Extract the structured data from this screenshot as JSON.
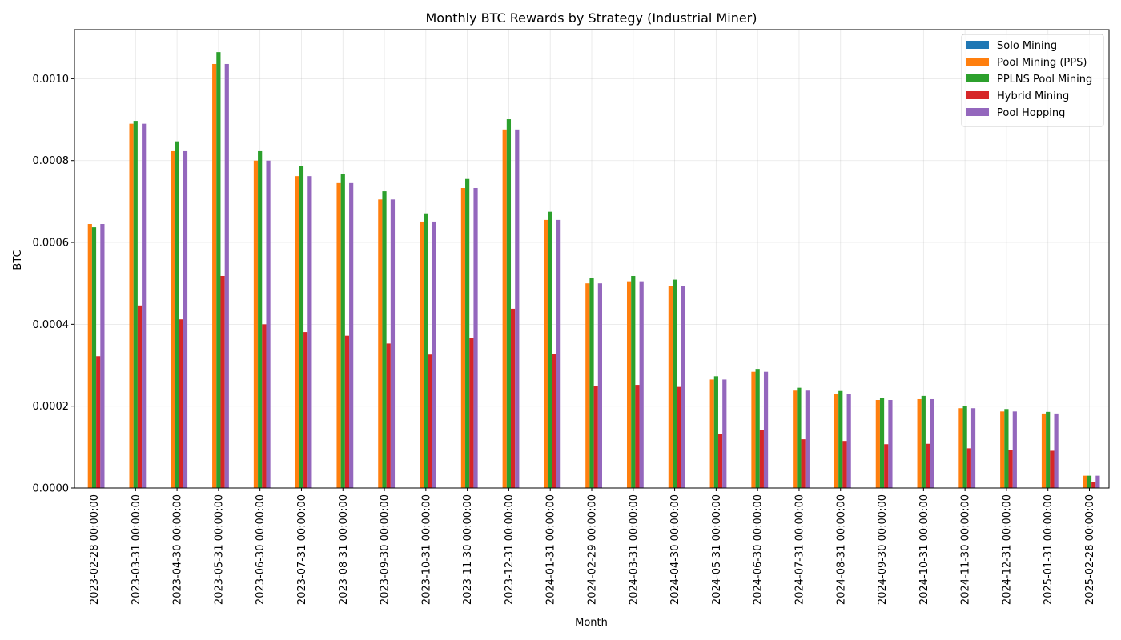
{
  "chart_data": {
    "type": "bar",
    "title": "Monthly BTC Rewards by Strategy (Industrial Miner)",
    "xlabel": "Month",
    "ylabel": "BTC",
    "ylim": [
      0,
      0.00112
    ],
    "yticks": [
      "0.0000",
      "0.0002",
      "0.0004",
      "0.0006",
      "0.0008",
      "0.0010"
    ],
    "ytick_values": [
      0,
      0.0002,
      0.0004,
      0.0006,
      0.0008,
      0.001
    ],
    "grid": true,
    "legend_position": "top-right",
    "categories": [
      "2023-02-28 00:00:00",
      "2023-03-31 00:00:00",
      "2023-04-30 00:00:00",
      "2023-05-31 00:00:00",
      "2023-06-30 00:00:00",
      "2023-07-31 00:00:00",
      "2023-08-31 00:00:00",
      "2023-09-30 00:00:00",
      "2023-10-31 00:00:00",
      "2023-11-30 00:00:00",
      "2023-12-31 00:00:00",
      "2024-01-31 00:00:00",
      "2024-02-29 00:00:00",
      "2024-03-31 00:00:00",
      "2024-04-30 00:00:00",
      "2024-05-31 00:00:00",
      "2024-06-30 00:00:00",
      "2024-07-31 00:00:00",
      "2024-08-31 00:00:00",
      "2024-09-30 00:00:00",
      "2024-10-31 00:00:00",
      "2024-11-30 00:00:00",
      "2024-12-31 00:00:00",
      "2025-01-31 00:00:00",
      "2025-02-28 00:00:00"
    ],
    "series": [
      {
        "name": "Solo Mining",
        "color": "#1f77b4",
        "values": [
          0,
          0,
          0,
          0,
          0,
          0,
          0,
          0,
          0,
          0,
          0,
          0,
          0,
          0,
          0,
          0,
          0,
          0,
          0,
          0,
          0,
          0,
          0,
          0,
          0
        ]
      },
      {
        "name": "Pool Mining (PPS)",
        "color": "#ff7f0e",
        "values": [
          0.000645,
          0.00089,
          0.000823,
          0.001036,
          0.0008,
          0.000762,
          0.000745,
          0.000705,
          0.000651,
          0.000733,
          0.000876,
          0.000655,
          0.0005,
          0.000505,
          0.000494,
          0.000265,
          0.000284,
          0.000238,
          0.00023,
          0.000215,
          0.000217,
          0.000195,
          0.000187,
          0.000182,
          3e-05
        ]
      },
      {
        "name": "PPLNS Pool Mining",
        "color": "#2ca02c",
        "values": [
          0.000637,
          0.000897,
          0.000847,
          0.001065,
          0.000823,
          0.000786,
          0.000767,
          0.000725,
          0.000671,
          0.000755,
          0.000901,
          0.000675,
          0.000514,
          0.000518,
          0.000509,
          0.000273,
          0.000291,
          0.000245,
          0.000237,
          0.00022,
          0.000225,
          0.0002,
          0.000193,
          0.000186,
          3e-05
        ]
      },
      {
        "name": "Hybrid Mining",
        "color": "#d62728",
        "values": [
          0.000322,
          0.000446,
          0.000412,
          0.000518,
          0.0004,
          0.000381,
          0.000372,
          0.000353,
          0.000326,
          0.000367,
          0.000438,
          0.000328,
          0.00025,
          0.000252,
          0.000247,
          0.000132,
          0.000142,
          0.000119,
          0.000115,
          0.000107,
          0.000108,
          9.7e-05,
          9.3e-05,
          9.1e-05,
          1.5e-05
        ]
      },
      {
        "name": "Pool Hopping",
        "color": "#9467bd",
        "values": [
          0.000645,
          0.00089,
          0.000823,
          0.001036,
          0.0008,
          0.000762,
          0.000745,
          0.000705,
          0.000651,
          0.000733,
          0.000876,
          0.000655,
          0.0005,
          0.000505,
          0.000494,
          0.000265,
          0.000284,
          0.000238,
          0.00023,
          0.000215,
          0.000217,
          0.000195,
          0.000187,
          0.000182,
          3e-05
        ]
      }
    ]
  }
}
